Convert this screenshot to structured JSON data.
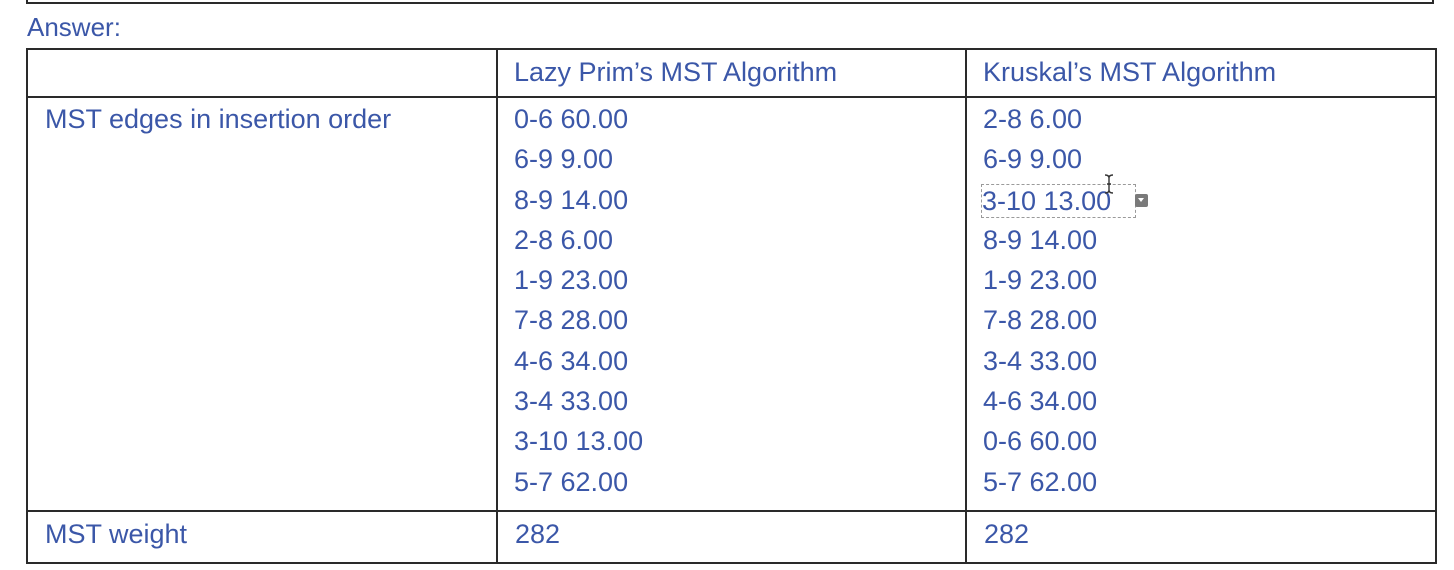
{
  "answer_label": "Answer:",
  "table": {
    "header": {
      "empty": "",
      "prim": "Lazy Prim’s MST Algorithm",
      "kruskal": "Kruskal’s MST Algorithm"
    },
    "edges_row": {
      "label": "MST edges in insertion order",
      "prim": [
        "0-6 60.00",
        "6-9 9.00",
        "8-9 14.00",
        "2-8 6.00",
        "1-9 23.00",
        "7-8 28.00",
        "4-6 34.00",
        "3-4 33.00",
        "3-10 13.00",
        "5-7 62.00"
      ],
      "kruskal": [
        "2-8 6.00",
        "6-9 9.00",
        "3-10 13.00",
        "8-9 14.00",
        "1-9 23.00",
        "7-8 28.00",
        "3-4 33.00",
        "4-6 34.00",
        "0-6 60.00",
        "5-7 62.00"
      ]
    },
    "weight_row": {
      "label": "MST weight",
      "prim": "282",
      "kruskal": "282"
    }
  },
  "selected_cell": {
    "column": "kruskal",
    "index": 2
  },
  "icons": {
    "cursor": "text-cursor-icon",
    "dropdown": "dropdown-handle-icon"
  },
  "colors": {
    "text": "#3b57a8",
    "border": "#2a2a2a"
  }
}
